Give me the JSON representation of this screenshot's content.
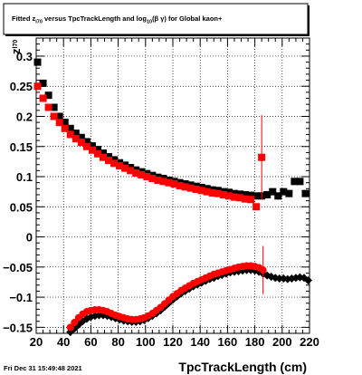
{
  "title": {
    "pre": "Fitted  z",
    "sub1": "l70",
    "mid": "  versus TpcTrackLength and log",
    "sub2": "10",
    "post": "(β  γ) for Global kaon+"
  },
  "timestamp": "Fri Dec 31 15:49:48 2021",
  "colors": {
    "black_series": "#000000",
    "red_series": "#ff0000",
    "grid": "#000000"
  },
  "chart_data": {
    "type": "scatter",
    "xlabel": "TpcTrackLength (cm)",
    "ylabel": "z",
    "ylabel_sub": "l70",
    "xlim": [
      20,
      220
    ],
    "ylim": [
      -0.16,
      0.33
    ],
    "grid": true,
    "xticks": [
      20,
      40,
      60,
      80,
      100,
      120,
      140,
      160,
      180,
      200,
      220
    ],
    "yticks": [
      -0.15,
      -0.1,
      -0.05,
      0,
      0.05,
      0.1,
      0.15,
      0.2,
      0.25,
      0.3
    ],
    "ytick_labels": [
      "−0.15",
      "−0.1",
      "−0.05",
      "0",
      "0.05",
      "0.1",
      "0.15",
      "0.2",
      "0.25",
      "0.3"
    ],
    "series": [
      {
        "color": "black",
        "marker": "square",
        "x": [
          21,
          25,
          29,
          33,
          37,
          41,
          45,
          49,
          53,
          57,
          61,
          65,
          69,
          73,
          77,
          81,
          85,
          89,
          93,
          97,
          101,
          105,
          109,
          113,
          117,
          121,
          125,
          129,
          133,
          137,
          141,
          145,
          149,
          153,
          157,
          161,
          165,
          169,
          173,
          177,
          181,
          185,
          189,
          193,
          197,
          201,
          205,
          209,
          213,
          217
        ],
        "y": [
          0.29,
          0.255,
          0.235,
          0.215,
          0.2,
          0.19,
          0.18,
          0.172,
          0.165,
          0.158,
          0.151,
          0.145,
          0.139,
          0.133,
          0.128,
          0.123,
          0.119,
          0.115,
          0.111,
          0.108,
          0.105,
          0.102,
          0.099,
          0.097,
          0.094,
          0.092,
          0.09,
          0.088,
          0.086,
          0.084,
          0.082,
          0.08,
          0.078,
          0.077,
          0.075,
          0.074,
          0.072,
          0.071,
          0.07,
          0.069,
          0.068,
          0.068,
          0.07,
          0.075,
          0.068,
          0.075,
          0.072,
          0.092,
          0.092,
          0.072
        ]
      },
      {
        "color": "red",
        "marker": "square",
        "x": [
          21,
          25,
          29,
          33,
          37,
          41,
          45,
          49,
          53,
          57,
          61,
          65,
          69,
          73,
          77,
          81,
          85,
          89,
          93,
          97,
          101,
          105,
          109,
          113,
          117,
          121,
          125,
          129,
          133,
          137,
          141,
          145,
          149,
          153,
          157,
          161,
          165,
          169,
          173,
          177,
          181,
          185
        ],
        "y": [
          0.25,
          0.23,
          0.215,
          0.2,
          0.19,
          0.18,
          0.17,
          0.163,
          0.157,
          0.15,
          0.144,
          0.138,
          0.132,
          0.127,
          0.122,
          0.118,
          0.114,
          0.11,
          0.106,
          0.103,
          0.1,
          0.097,
          0.094,
          0.092,
          0.09,
          0.088,
          0.085,
          0.083,
          0.081,
          0.079,
          0.077,
          0.075,
          0.073,
          0.072,
          0.07,
          0.068,
          0.066,
          0.065,
          0.063,
          0.062,
          0.05,
          0.132
        ],
        "yerr": [
          0,
          0,
          0,
          0,
          0,
          0,
          0,
          0,
          0,
          0,
          0,
          0,
          0,
          0,
          0,
          0,
          0,
          0,
          0,
          0,
          0,
          0,
          0,
          0,
          0,
          0,
          0,
          0,
          0,
          0,
          0,
          0,
          0,
          0,
          0,
          0,
          0,
          0,
          0,
          0,
          0,
          0.07
        ]
      },
      {
        "color": "black",
        "marker": "diamond",
        "x": [
          45,
          48,
          51,
          54,
          57,
          60,
          63,
          66,
          69,
          72,
          75,
          78,
          81,
          84,
          87,
          90,
          93,
          96,
          99,
          102,
          105,
          108,
          111,
          114,
          117,
          120,
          123,
          126,
          129,
          132,
          135,
          138,
          141,
          144,
          147,
          150,
          153,
          156,
          159,
          162,
          165,
          168,
          171,
          174,
          177,
          180,
          183,
          186,
          189,
          192,
          195,
          198,
          201,
          204,
          207,
          210,
          213,
          216,
          219
        ],
        "y": [
          -0.158,
          -0.152,
          -0.146,
          -0.14,
          -0.136,
          -0.133,
          -0.131,
          -0.13,
          -0.13,
          -0.131,
          -0.133,
          -0.135,
          -0.137,
          -0.139,
          -0.14,
          -0.141,
          -0.141,
          -0.14,
          -0.138,
          -0.135,
          -0.131,
          -0.127,
          -0.122,
          -0.116,
          -0.11,
          -0.104,
          -0.099,
          -0.094,
          -0.09,
          -0.086,
          -0.082,
          -0.079,
          -0.076,
          -0.073,
          -0.07,
          -0.068,
          -0.065,
          -0.063,
          -0.061,
          -0.059,
          -0.058,
          -0.057,
          -0.056,
          -0.055,
          -0.055,
          -0.056,
          -0.058,
          -0.061,
          -0.064,
          -0.066,
          -0.068,
          -0.069,
          -0.069,
          -0.07,
          -0.069,
          -0.068,
          -0.067,
          -0.068,
          -0.072
        ]
      },
      {
        "color": "red",
        "marker": "circle",
        "x": [
          45,
          48,
          51,
          54,
          57,
          60,
          63,
          66,
          69,
          72,
          75,
          78,
          81,
          84,
          87,
          90,
          93,
          96,
          99,
          102,
          105,
          108,
          111,
          114,
          117,
          120,
          123,
          126,
          129,
          132,
          135,
          138,
          141,
          144,
          147,
          150,
          153,
          156,
          159,
          162,
          165,
          168,
          171,
          174,
          177,
          180,
          183,
          186
        ],
        "y": [
          -0.15,
          -0.142,
          -0.134,
          -0.128,
          -0.124,
          -0.122,
          -0.121,
          -0.121,
          -0.122,
          -0.124,
          -0.127,
          -0.13,
          -0.132,
          -0.134,
          -0.136,
          -0.137,
          -0.137,
          -0.136,
          -0.134,
          -0.131,
          -0.127,
          -0.122,
          -0.117,
          -0.111,
          -0.105,
          -0.099,
          -0.094,
          -0.089,
          -0.085,
          -0.081,
          -0.077,
          -0.074,
          -0.071,
          -0.068,
          -0.065,
          -0.062,
          -0.06,
          -0.058,
          -0.056,
          -0.054,
          -0.052,
          -0.05,
          -0.049,
          -0.048,
          -0.048,
          -0.049,
          -0.051,
          -0.055
        ],
        "yerr": [
          0,
          0,
          0,
          0,
          0,
          0,
          0,
          0,
          0,
          0,
          0,
          0,
          0,
          0,
          0,
          0,
          0,
          0,
          0,
          0,
          0,
          0,
          0,
          0,
          0,
          0,
          0,
          0,
          0,
          0,
          0,
          0,
          0,
          0,
          0,
          0,
          0,
          0,
          0,
          0,
          0,
          0,
          0,
          0,
          0,
          0,
          0,
          0.04
        ]
      }
    ]
  }
}
